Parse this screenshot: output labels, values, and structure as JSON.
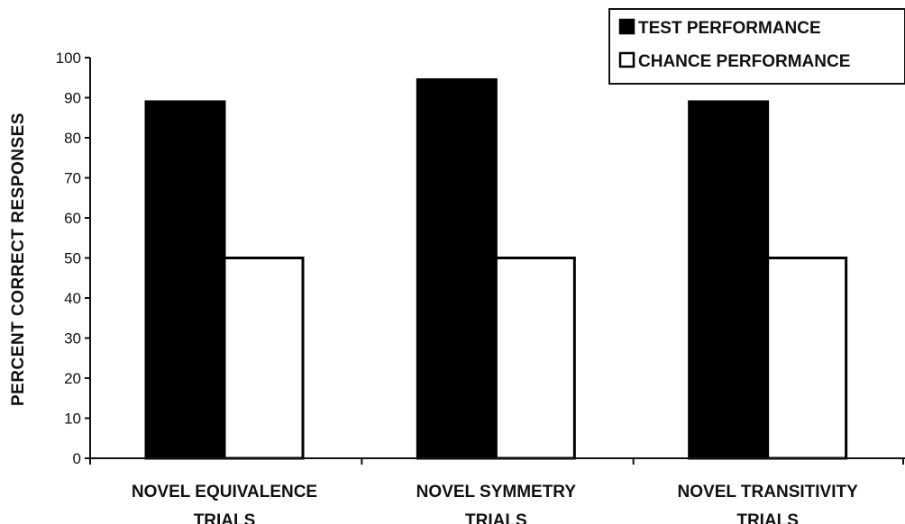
{
  "chart_data": {
    "type": "bar",
    "title": "",
    "xlabel": "",
    "ylabel": "PERCENT CORRECT RESPONSES",
    "ylim": [
      0,
      100
    ],
    "yticks": [
      0,
      10,
      20,
      30,
      40,
      50,
      60,
      70,
      80,
      90,
      100
    ],
    "grid": false,
    "legend_position": "top-right",
    "categories": [
      [
        "NOVEL EQUIVALENCE",
        "TRIALS"
      ],
      [
        "NOVEL SYMMETRY",
        "TRIALS"
      ],
      [
        "NOVEL TRANSITIVITY",
        "TRIALS"
      ]
    ],
    "series": [
      {
        "name": "TEST PERFORMANCE",
        "values": [
          89,
          94.5,
          89
        ],
        "fill": "#000000"
      },
      {
        "name": "CHANCE PERFORMANCE",
        "values": [
          50,
          50,
          50
        ],
        "fill": "#ffffff"
      }
    ]
  }
}
